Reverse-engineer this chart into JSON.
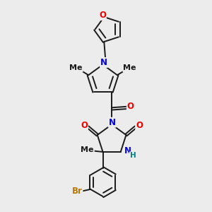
{
  "bg_color": "#ececec",
  "bond_color": "#1a1a1a",
  "N_color": "#0000ee",
  "O_color": "#ee0000",
  "Br_color": "#bb7700",
  "H_color": "#008080",
  "line_width": 1.4,
  "dbo": 0.055,
  "font_size": 8.5,
  "fig_size": [
    3.0,
    3.0
  ],
  "dpi": 100,
  "xlim": [
    0,
    10
  ],
  "ylim": [
    0,
    10
  ]
}
